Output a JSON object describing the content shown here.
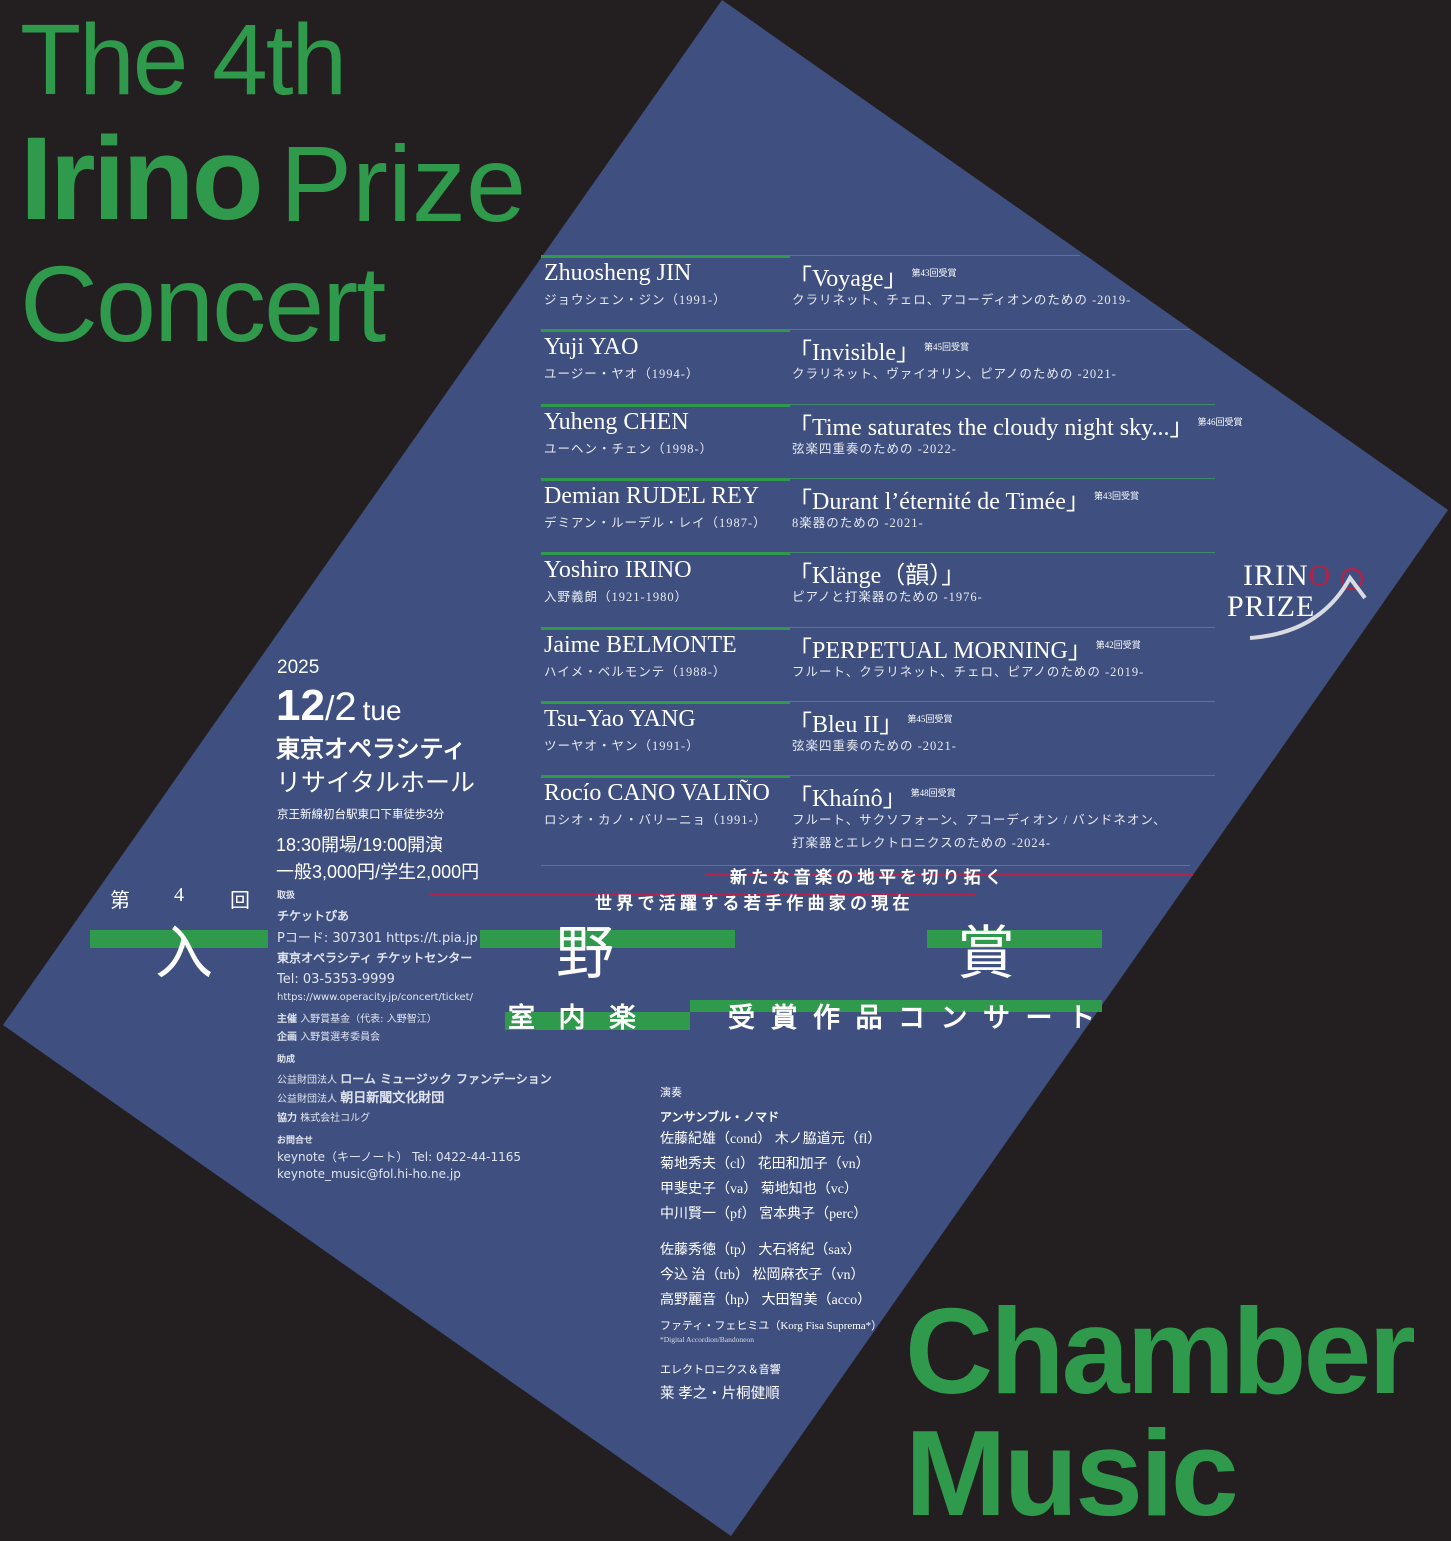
{
  "colors": {
    "background": "#231f20",
    "panel": "#3f5080",
    "accent_green": "#2f9a4c",
    "accent_red": "#b0234a"
  },
  "logo": {
    "line1": "IRINO",
    "line2": "PRIZE"
  },
  "event": {
    "year": "2025",
    "month": "12",
    "slash": "/",
    "day": "2",
    "weekday": "tue",
    "venue_bold": "東京オペラシティ",
    "venue_hall": "リサイタルホール",
    "access": "京王新線初台駅東口下車徒歩3分",
    "time_open": "18:30",
    "open_label": "開場",
    "time_start": "19:00",
    "start_label": "開演",
    "price_general_label": "一般",
    "price_general": "3,000",
    "yen": "円",
    "price_student_label": "学生",
    "price_student": "2,000"
  },
  "tickets": {
    "label": "取扱",
    "pia": "チケットぴあ",
    "pia_detail": "Pコード: 307301 https://t.pia.jp",
    "opera_center": "東京オペラシティ チケットセンター",
    "tel": "Tel: 03-5353-9999",
    "url": "https://www.operacity.jp/concert/ticket/"
  },
  "credits": {
    "organizer_label": "主催",
    "organizer": "入野賞基金（代表: 入野智江）",
    "planning_label": "企画",
    "planning": "入野賞選考委員会",
    "grant_label": "助成",
    "grant1_prefix": "公益財団法人",
    "grant1": "ローム ミュージック ファンデーション",
    "grant2_prefix": "公益財団法人",
    "grant2": "朝日新聞文化財団",
    "support_label": "協力",
    "support": "株式会社コルグ",
    "contact_label": "お問合せ",
    "contact1": "keynote（キーノート） Tel: 0422-44-1165",
    "contact2": "keynote_music@fol.hi-ho.ne.jp"
  },
  "title": {
    "en_the4th": "The 4th",
    "en_irino": "Irino",
    "en_prize": "Prize",
    "en_chamber": "Chamber Music",
    "en_concert": "Concert",
    "jp_dai": "第",
    "jp_4": "4",
    "jp_kai": "回",
    "jp_iri": "入",
    "jp_no": "野",
    "jp_sho": "賞",
    "jp_sub1": "室 内 楽",
    "jp_sub2": "受 賞 作 品 コ ン サ ー ト",
    "tagline1": "新 た な 音 楽 の 地 平 を 切 り 拓 く",
    "tagline2": "世 界 で 活 躍 す る 若 手 作 曲 家 の 現 在"
  },
  "program": [
    {
      "name": "Zhuosheng JIN",
      "kana": "ジョウシェン・ジン（1991-）",
      "title": "「Voyage」",
      "award": "第43回受賞",
      "instr": "クラリネット、チェロ、アコーディオンのための -2019-"
    },
    {
      "name": "Yuji YAO",
      "kana": "ユージー・ヤオ（1994-）",
      "title": "「Invisible」",
      "award": "第45回受賞",
      "instr": "クラリネット、ヴァイオリン、ピアノのための -2021-"
    },
    {
      "name": "Yuheng CHEN",
      "kana": "ユーヘン・チェン（1998-）",
      "title": "「Time saturates the cloudy night sky...」",
      "award": "第46回受賞",
      "instr": "弦楽四重奏のための -2022-"
    },
    {
      "name": "Demian RUDEL REY",
      "kana": "デミアン・ルーデル・レイ（1987-）",
      "title": "「Durant l’éternité de Timée」",
      "award": "第43回受賞",
      "instr": "8楽器のための -2021-"
    },
    {
      "name": "Yoshiro IRINO",
      "kana": "入野義朗（1921-1980）",
      "title": "「Klänge（韻）」",
      "award": "",
      "instr": "ピアノと打楽器のための -1976-"
    },
    {
      "name": "Jaime BELMONTE",
      "kana": "ハイメ・ベルモンテ（1988-）",
      "title": "「PERPETUAL MORNING」",
      "award": "第42回受賞",
      "instr": "フルート、クラリネット、チェロ、ピアノのための -2019-"
    },
    {
      "name": "Tsu-Yao YANG",
      "kana": "ツーヤオ・ヤン（1991-）",
      "title": "「Bleu II」",
      "award": "第45回受賞",
      "instr": "弦楽四重奏のための -2021-"
    },
    {
      "name": "Rocío CANO VALIÑO",
      "kana": "ロシオ・カノ・バリーニョ（1991-）",
      "title": "「Khaínô」",
      "award": "第48回受賞",
      "instr": "フルート、サクソフォーン、アコーディオン / バンドネオン、",
      "instr2": "打楽器とエレクトロニクスのための -2024-"
    }
  ],
  "performers": {
    "label": "演奏",
    "ensemble": "アンサンブル・ノマド",
    "lines": [
      "佐藤紀雄（cond） 木ノ脇道元（fl）",
      "菊地秀夫（cl） 花田和加子（vn）",
      "甲斐史子（va） 菊地知也（vc）",
      "中川賢一（pf） 宮本典子（perc）",
      "佐藤秀徳（tp） 大石将紀（sax）",
      "今込 治（trb） 松岡麻衣子（vn）",
      "高野麗音（hp） 大田智美（acco）"
    ],
    "fisa": "ファティ・フェヒミユ（Korg Fisa Suprema*）",
    "fisa_note": "*Digital Accordion/Bandoneon",
    "electronics_label": "エレクトロニクス＆音響",
    "electronics": "莱 孝之・片桐健順"
  }
}
